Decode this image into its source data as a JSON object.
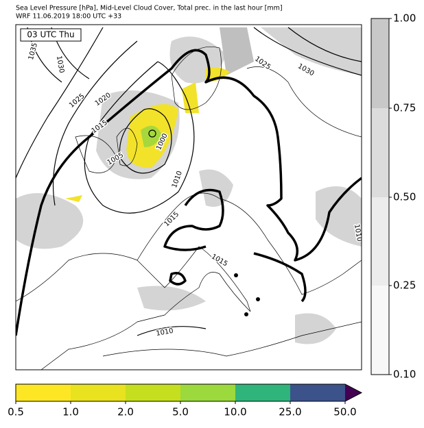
{
  "header": {
    "title": "Sea Level Pressure [hPa], Mid-Level Cloud Cover, Total prec. in the last hour [mm]",
    "subtitle": "WRF 11.06.2019 18:00 UTC +33"
  },
  "map": {
    "time_label": "03 UTC Thu",
    "isobar_labels": [
      "1035",
      "1030",
      "1025",
      "1020",
      "1015",
      "1005",
      "1000",
      "1010",
      "1015",
      "1015",
      "1010",
      "1025",
      "1030",
      "1010"
    ]
  },
  "cloud_colorbar": {
    "ticks": [
      "1.00",
      "0.75",
      "0.50",
      "0.25",
      "0.10"
    ]
  },
  "precip_colorbar": {
    "ticks": [
      "0.5",
      "1.0",
      "2.0",
      "5.0",
      "10.0",
      "25.0",
      "50.0"
    ]
  }
}
